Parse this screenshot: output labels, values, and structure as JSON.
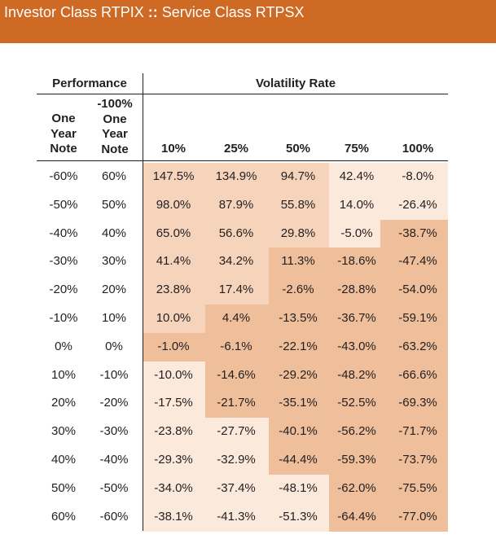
{
  "header": {
    "investor_class": "Investor Class RTPIX",
    "separator": "::",
    "service_class": "Service Class RTPSX"
  },
  "table": {
    "group_performance": "Performance",
    "group_volatility": "Volatility Rate",
    "col_one_year_note": [
      "One",
      "Year",
      "Note"
    ],
    "col_minus100_one_year_note": [
      "-100%",
      "One",
      "Year",
      "Note"
    ],
    "volatility_columns": [
      "10%",
      "25%",
      "50%",
      "75%",
      "100%"
    ],
    "rows": [
      {
        "one_year": "-60%",
        "minus100": "60%",
        "values": [
          "147.5%",
          "134.9%",
          "94.7%",
          "42.4%",
          "-8.0%"
        ],
        "shade": [
          1,
          1,
          1,
          0,
          0
        ]
      },
      {
        "one_year": "-50%",
        "minus100": "50%",
        "values": [
          "98.0%",
          "87.9%",
          "55.8%",
          "14.0%",
          "-26.4%"
        ],
        "shade": [
          1,
          1,
          1,
          0,
          0
        ]
      },
      {
        "one_year": "-40%",
        "minus100": "40%",
        "values": [
          "65.0%",
          "56.6%",
          "29.8%",
          "-5.0%",
          "-38.7%"
        ],
        "shade": [
          1,
          1,
          1,
          0,
          2
        ]
      },
      {
        "one_year": "-30%",
        "minus100": "30%",
        "values": [
          "41.4%",
          "34.2%",
          "11.3%",
          "-18.6%",
          "-47.4%"
        ],
        "shade": [
          1,
          1,
          2,
          2,
          2
        ]
      },
      {
        "one_year": "-20%",
        "minus100": "20%",
        "values": [
          "23.8%",
          "17.4%",
          "-2.6%",
          "-28.8%",
          "-54.0%"
        ],
        "shade": [
          1,
          1,
          2,
          2,
          2
        ]
      },
      {
        "one_year": "-10%",
        "minus100": "10%",
        "values": [
          "10.0%",
          "4.4%",
          "-13.5%",
          "-36.7%",
          "-59.1%"
        ],
        "shade": [
          1,
          2,
          2,
          2,
          2
        ]
      },
      {
        "one_year": "0%",
        "minus100": "0%",
        "values": [
          "-1.0%",
          "-6.1%",
          "-22.1%",
          "-43.0%",
          "-63.2%"
        ],
        "shade": [
          2,
          2,
          2,
          2,
          2
        ]
      },
      {
        "one_year": "10%",
        "minus100": "-10%",
        "values": [
          "-10.0%",
          "-14.6%",
          "-29.2%",
          "-48.2%",
          "-66.6%"
        ],
        "shade": [
          0,
          2,
          2,
          2,
          2
        ]
      },
      {
        "one_year": "20%",
        "minus100": "-20%",
        "values": [
          "-17.5%",
          "-21.7%",
          "-35.1%",
          "-52.5%",
          "-69.3%"
        ],
        "shade": [
          0,
          2,
          2,
          2,
          2
        ]
      },
      {
        "one_year": "30%",
        "minus100": "-30%",
        "values": [
          "-23.8%",
          "-27.7%",
          "-40.1%",
          "-56.2%",
          "-71.7%"
        ],
        "shade": [
          0,
          0,
          2,
          2,
          2
        ]
      },
      {
        "one_year": "40%",
        "minus100": "-40%",
        "values": [
          "-29.3%",
          "-32.9%",
          "-44.4%",
          "-59.3%",
          "-73.7%"
        ],
        "shade": [
          0,
          0,
          2,
          2,
          2
        ]
      },
      {
        "one_year": "50%",
        "minus100": "-50%",
        "values": [
          "-34.0%",
          "-37.4%",
          "-48.1%",
          "-62.0%",
          "-75.5%"
        ],
        "shade": [
          0,
          0,
          0,
          2,
          2
        ]
      },
      {
        "one_year": "60%",
        "minus100": "-60%",
        "values": [
          "-38.1%",
          "-41.3%",
          "-51.3%",
          "-64.4%",
          "-77.0%"
        ],
        "shade": [
          0,
          0,
          0,
          2,
          2
        ]
      }
    ]
  },
  "colors": {
    "banner": "#cf6a25",
    "shade_light": "#fbe9dc",
    "shade_medium": "#f6d4bb",
    "shade_dark": "#efbe9a"
  }
}
